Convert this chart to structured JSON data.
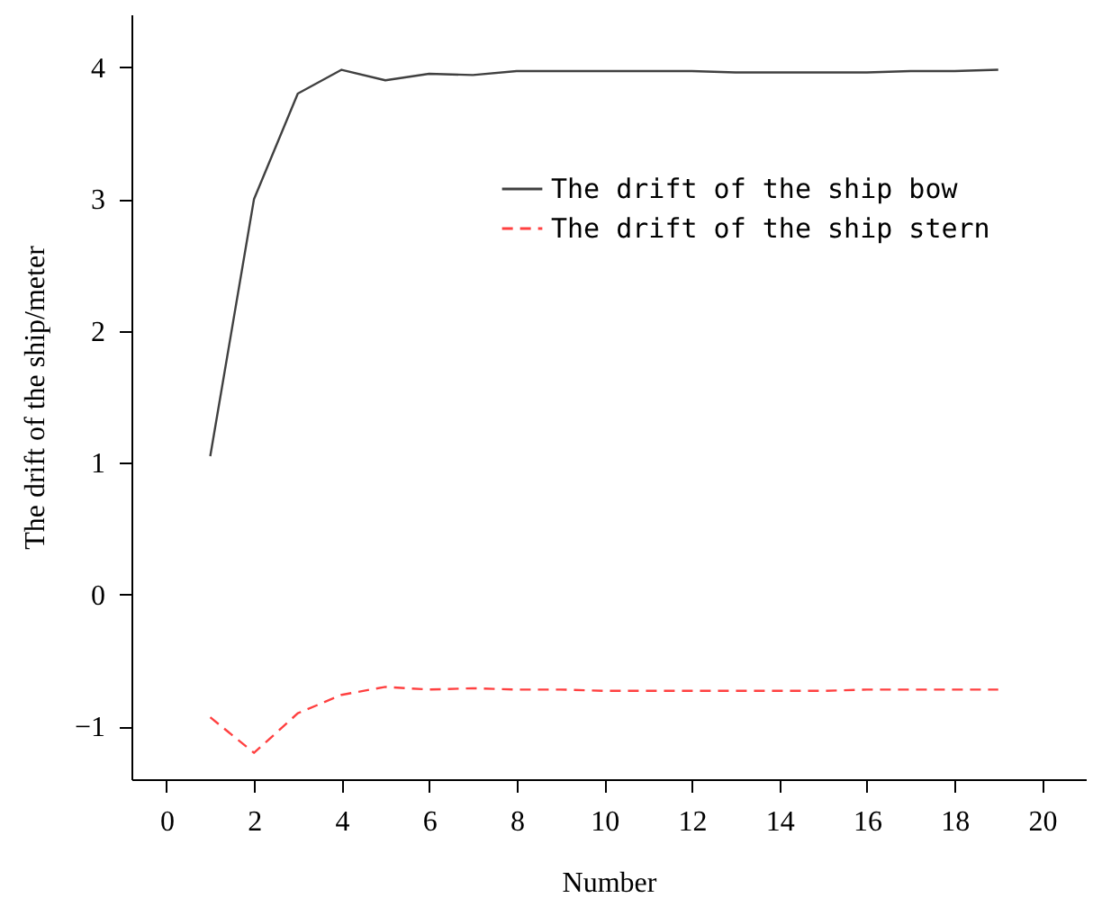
{
  "chart_data": {
    "type": "line",
    "xlabel": "Number",
    "ylabel": "The drift of the ship/meter",
    "x": [
      1,
      2,
      3,
      4,
      5,
      6,
      7,
      8,
      9,
      10,
      11,
      12,
      13,
      14,
      15,
      16,
      17,
      18,
      19
    ],
    "series": [
      {
        "name": "The drift of the ship bow",
        "color": "#404040",
        "line_style": "solid",
        "values": [
          1.05,
          3.0,
          3.8,
          3.98,
          3.9,
          3.95,
          3.94,
          3.97,
          3.97,
          3.97,
          3.97,
          3.97,
          3.96,
          3.96,
          3.96,
          3.96,
          3.97,
          3.97,
          3.98
        ]
      },
      {
        "name": "The drift of the ship stern",
        "color": "#ff4040",
        "line_style": "dashed",
        "values": [
          -0.93,
          -1.2,
          -0.9,
          -0.76,
          -0.7,
          -0.72,
          -0.71,
          -0.72,
          -0.72,
          -0.73,
          -0.73,
          -0.73,
          -0.73,
          -0.73,
          -0.73,
          -0.72,
          -0.72,
          -0.72,
          -0.72
        ]
      }
    ],
    "xlim": [
      -0.8,
      21
    ],
    "xticks": [
      0,
      2,
      4,
      6,
      8,
      10,
      12,
      14,
      16,
      18,
      20
    ],
    "ylim": [
      -1.4,
      4.4
    ],
    "yticks": [
      -1,
      0,
      1,
      2,
      3,
      4
    ],
    "grid": false,
    "legend": "top right",
    "marker": "none"
  }
}
